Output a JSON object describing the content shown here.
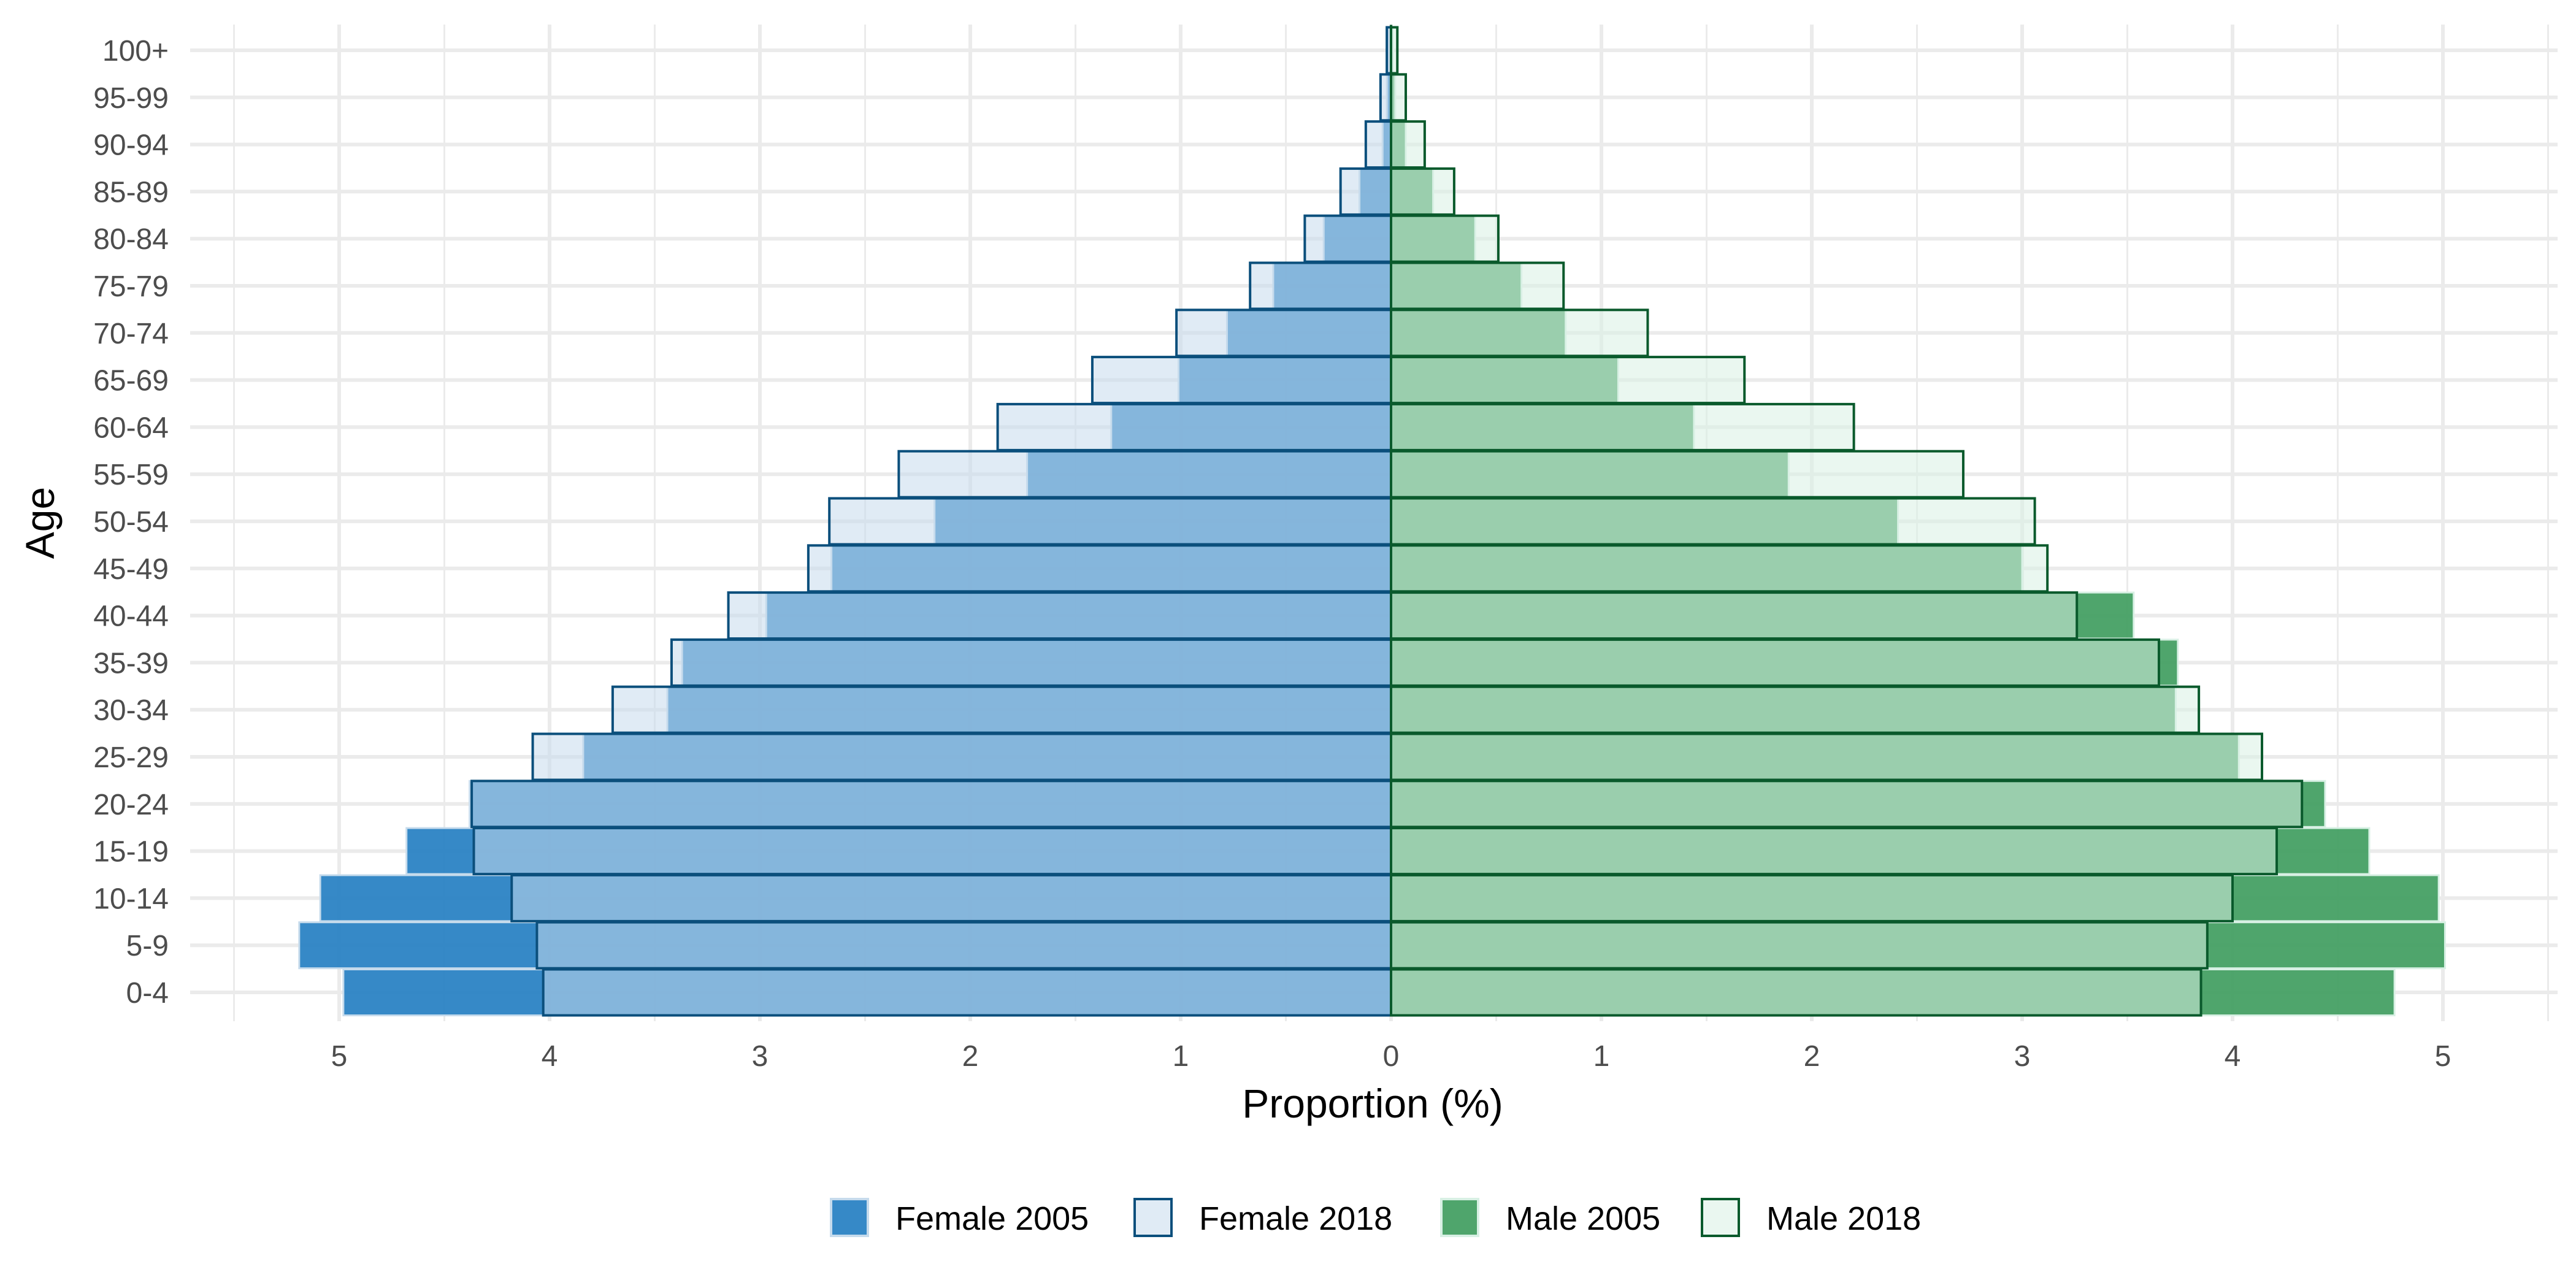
{
  "chart_data": {
    "type": "bar",
    "orientation": "horizontal",
    "title": "",
    "xlabel": "Proportion (%)",
    "ylabel": "Age",
    "xlim": [
      -5.5,
      5.5
    ],
    "x_ticks": [
      -5,
      -4,
      -3,
      -2,
      -1,
      0,
      1,
      2,
      3,
      4,
      5
    ],
    "x_tick_labels": [
      "5",
      "4",
      "3",
      "2",
      "1",
      "0",
      "1",
      "2",
      "3",
      "4",
      "5"
    ],
    "grid": true,
    "legend_position": "bottom",
    "categories": [
      "0-4",
      "5-9",
      "10-14",
      "15-19",
      "20-24",
      "25-29",
      "30-34",
      "35-39",
      "40-44",
      "45-49",
      "50-54",
      "55-59",
      "60-64",
      "65-69",
      "70-74",
      "75-79",
      "80-84",
      "85-89",
      "90-94",
      "95-99",
      "100+"
    ],
    "series": [
      {
        "name": "Female 2005",
        "side": "left",
        "color": "#2b83c4",
        "values": [
          4.98,
          5.19,
          5.09,
          4.68,
          4.38,
          3.84,
          3.44,
          3.37,
          2.97,
          2.66,
          2.17,
          1.73,
          1.33,
          1.01,
          0.78,
          0.56,
          0.32,
          0.15,
          0.04,
          0.02,
          0.01
        ]
      },
      {
        "name": "Female 2018",
        "side": "left",
        "color": "#c6dbec",
        "values": [
          4.03,
          4.06,
          4.18,
          4.36,
          4.37,
          4.08,
          3.7,
          3.42,
          3.15,
          2.77,
          2.67,
          2.34,
          1.87,
          1.42,
          1.02,
          0.67,
          0.41,
          0.24,
          0.12,
          0.05,
          0.02
        ]
      },
      {
        "name": "Male 2005",
        "side": "right",
        "color": "#46a064",
        "values": [
          4.77,
          5.01,
          4.98,
          4.65,
          4.44,
          4.03,
          3.73,
          3.74,
          3.53,
          3.0,
          2.41,
          1.89,
          1.44,
          1.08,
          0.83,
          0.62,
          0.4,
          0.2,
          0.07,
          0.02,
          0.01
        ]
      },
      {
        "name": "Male 2018",
        "side": "right",
        "color": "#d8f0e4",
        "values": [
          3.85,
          3.88,
          4.0,
          4.21,
          4.33,
          4.14,
          3.84,
          3.65,
          3.26,
          3.12,
          3.06,
          2.72,
          2.2,
          1.68,
          1.22,
          0.82,
          0.51,
          0.3,
          0.16,
          0.07,
          0.03
        ]
      }
    ]
  }
}
